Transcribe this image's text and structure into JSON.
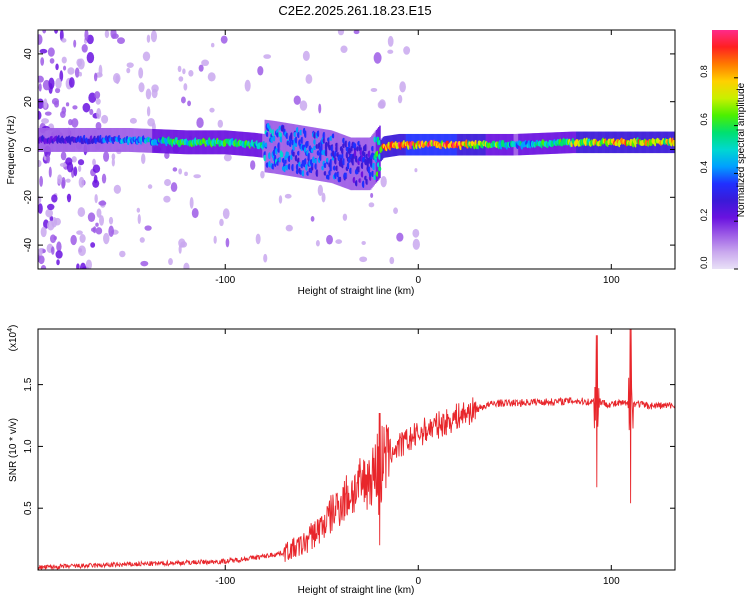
{
  "title": "C2E2.2025.261.18.23.E15",
  "colors": {
    "snr_line": "#e8262b",
    "axis": "#000000",
    "colormap": [
      "#e9e1f7",
      "#c9a8ee",
      "#9d5ce6",
      "#6a12e0",
      "#3a1ad8",
      "#2030ff",
      "#00a0ff",
      "#00d8d0",
      "#00e070",
      "#4cf000",
      "#c8f000",
      "#ffd000",
      "#ff7a00",
      "#ff2020",
      "#ff2a8a"
    ]
  },
  "chart_data": [
    {
      "type": "heatmap",
      "name": "spectrogram",
      "xlabel": "Height of straight line (km)",
      "ylabel": "Frequency (Hz)",
      "xlim": [
        -197,
        133
      ],
      "ylim": [
        -50,
        50
      ],
      "xticks": [
        -100,
        0,
        100
      ],
      "xtick_labels": [
        "-100",
        "0",
        "100"
      ],
      "yticks": [
        -40,
        -20,
        0,
        20,
        40
      ],
      "ytick_labels": [
        "-40",
        "-20",
        "0",
        "20",
        "40"
      ],
      "colorbar": {
        "label": "Normalized spectral amplitude",
        "range": [
          0,
          1
        ],
        "ticks": [
          0.0,
          0.2,
          0.4,
          0.6,
          0.8
        ],
        "tick_labels": [
          "0.0",
          "0.2",
          "0.4",
          "0.6",
          "0.8"
        ]
      },
      "ridge_profile": {
        "x_km": [
          -197,
          -170,
          -150,
          -120,
          -100,
          -85,
          -75,
          -60,
          -45,
          -35,
          -25,
          -18,
          -10,
          0,
          20,
          50,
          80,
          100,
          133
        ],
        "center_hz": [
          4,
          4,
          4,
          3,
          3,
          2,
          1,
          -1,
          -3,
          -6,
          -6,
          1,
          2,
          2,
          2,
          2,
          3,
          3,
          3
        ],
        "amplitude": [
          0.25,
          0.35,
          0.45,
          0.6,
          0.62,
          0.55,
          0.45,
          0.42,
          0.38,
          0.35,
          0.3,
          0.85,
          0.9,
          0.95,
          0.92,
          0.5,
          0.7,
          0.85,
          0.8
        ]
      }
    },
    {
      "type": "line",
      "name": "snr",
      "xlabel": "Height of straight line (km)",
      "ylabel": "SNR (10 * v/v)",
      "y_multiplier_label": "(x10",
      "y_multiplier_exponent": "4",
      "xlim": [
        -197,
        133
      ],
      "ylim": [
        0,
        1.95
      ],
      "xticks": [
        -100,
        0,
        100
      ],
      "xtick_labels": [
        "-100",
        "0",
        "100"
      ],
      "yticks": [
        0.5,
        1.0,
        1.5
      ],
      "ytick_labels": [
        "0.5",
        "1.0",
        "1.5"
      ],
      "series": [
        {
          "name": "SNR",
          "x": [
            -197,
            -180,
            -160,
            -140,
            -120,
            -100,
            -90,
            -80,
            -70,
            -60,
            -55,
            -50,
            -45,
            -40,
            -35,
            -30,
            -25,
            -20,
            -15,
            -10,
            -5,
            0,
            5,
            10,
            15,
            20,
            25,
            30,
            35,
            40,
            50,
            60,
            70,
            80,
            90,
            93,
            96,
            100,
            105,
            110,
            113,
            118,
            125,
            133
          ],
          "y": [
            0.02,
            0.03,
            0.04,
            0.05,
            0.06,
            0.07,
            0.09,
            0.11,
            0.14,
            0.2,
            0.28,
            0.35,
            0.45,
            0.55,
            0.62,
            0.68,
            0.75,
            0.85,
            0.95,
            1.0,
            1.05,
            1.1,
            1.14,
            1.17,
            1.2,
            1.24,
            1.27,
            1.3,
            1.33,
            1.35,
            1.35,
            1.36,
            1.36,
            1.37,
            1.36,
            1.38,
            1.35,
            1.34,
            1.35,
            1.34,
            1.35,
            1.33,
            1.33,
            1.33
          ]
        }
      ],
      "spikes": [
        {
          "x": -20,
          "high": 1.27,
          "low": 0.2
        },
        {
          "x": 92.5,
          "high": 1.9,
          "low": 0.67
        },
        {
          "x": 110,
          "high": 1.95,
          "low": 0.54
        }
      ]
    }
  ]
}
